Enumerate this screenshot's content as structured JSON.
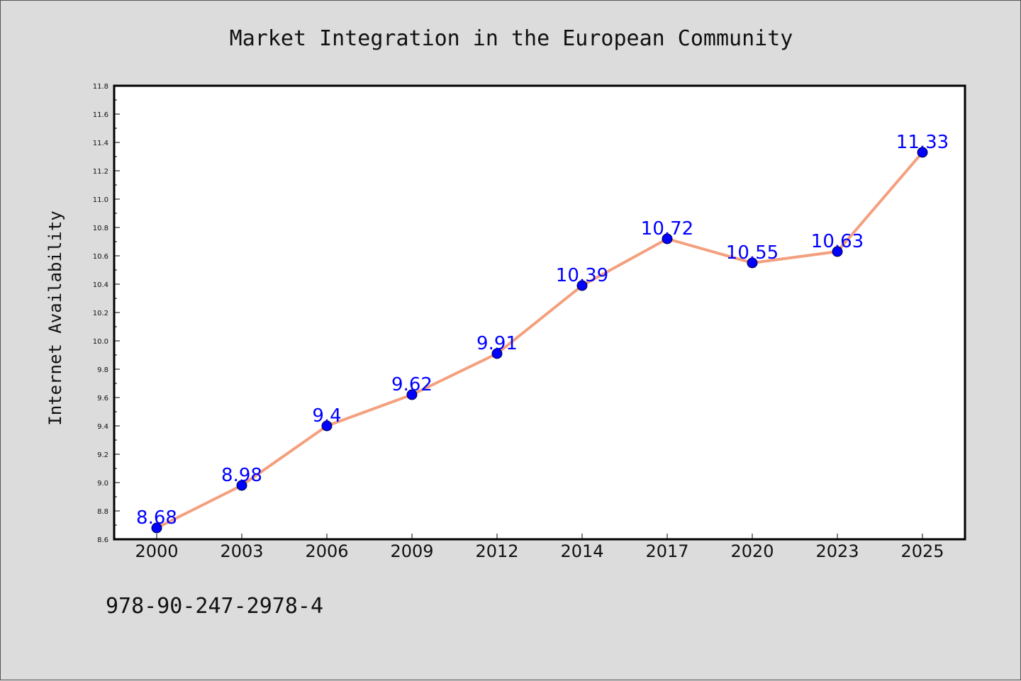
{
  "chart_data": {
    "type": "line",
    "title": "Market Integration in the European Community",
    "xlabel": "",
    "ylabel": "Internet Availability",
    "categories": [
      "2000",
      "2003",
      "2006",
      "2009",
      "2012",
      "2014",
      "2017",
      "2020",
      "2023",
      "2025"
    ],
    "series": [
      {
        "values": [
          8.68,
          8.98,
          9.4,
          9.62,
          9.91,
          10.39,
          10.72,
          10.55,
          10.63,
          11.33
        ],
        "data_labels": [
          "8.68",
          "8.98",
          "9.4",
          "9.62",
          "9.91",
          "10.39",
          "10.72",
          "10.55",
          "10.63",
          "11.33"
        ]
      }
    ],
    "ylim": [
      8.6,
      11.8
    ],
    "yticks": [
      "8.6",
      "8.8",
      "9.0",
      "9.2",
      "9.4",
      "9.6",
      "9.8",
      "10.0",
      "10.2",
      "10.4",
      "10.6",
      "10.8",
      "11.0",
      "11.2",
      "11.4",
      "11.6",
      "11.8"
    ],
    "grid": false,
    "legend": "none",
    "colors": {
      "line": "#f4a07e",
      "marker": "#0000ff",
      "label": "#0000ff",
      "background": "#dcdcdc",
      "plot_background": "#ffffff"
    }
  },
  "footer": {
    "isbn": "978-90-247-2978-4"
  }
}
